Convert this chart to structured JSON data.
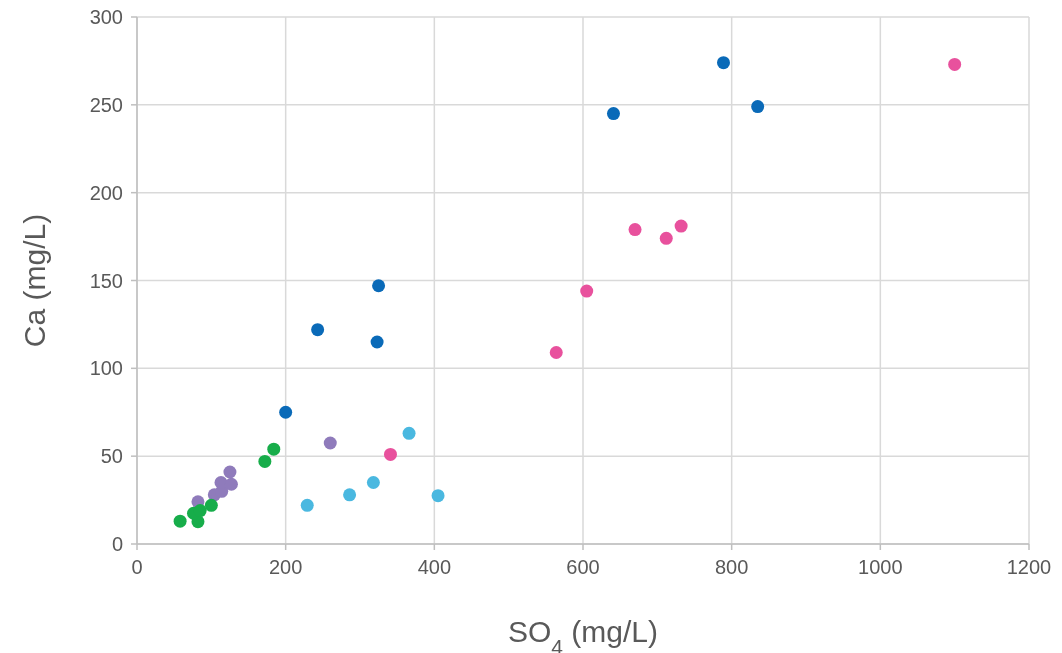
{
  "chart_data": {
    "type": "scatter",
    "xlabel": "SO$_{4}$ (mg/L)",
    "ylabel": "Ca (mg/L)",
    "xlim": [
      0,
      1200
    ],
    "ylim": [
      0,
      300
    ],
    "xticks": [
      0,
      200,
      400,
      600,
      800,
      1000,
      1200
    ],
    "yticks": [
      0,
      50,
      100,
      150,
      200,
      250,
      300
    ],
    "grid": true,
    "marker": "circle",
    "series": [
      {
        "color": "#0a6ab8",
        "x": [
          200,
          243,
          325,
          323,
          641,
          789,
          835
        ],
        "values": [
          75,
          122,
          147,
          115,
          245,
          274,
          249
        ]
      },
      {
        "color": "#e8519d",
        "x": [
          341,
          564,
          605,
          670,
          712,
          732,
          1100
        ],
        "values": [
          51,
          109,
          144,
          179,
          174,
          181,
          273
        ]
      },
      {
        "color": "#4ab8e0",
        "x": [
          229,
          286,
          318,
          366,
          405
        ],
        "values": [
          22,
          28,
          35,
          63,
          27.5
        ]
      },
      {
        "color": "#8f7bbb",
        "x": [
          82,
          104,
          114,
          113,
          127,
          125,
          260
        ],
        "values": [
          24,
          28,
          30,
          35,
          34,
          41,
          57.5
        ]
      },
      {
        "color": "#17ad4a",
        "x": [
          58,
          82,
          76,
          85,
          100,
          172,
          184
        ],
        "values": [
          13,
          12.7,
          17.5,
          19,
          22,
          47,
          54
        ]
      }
    ]
  }
}
